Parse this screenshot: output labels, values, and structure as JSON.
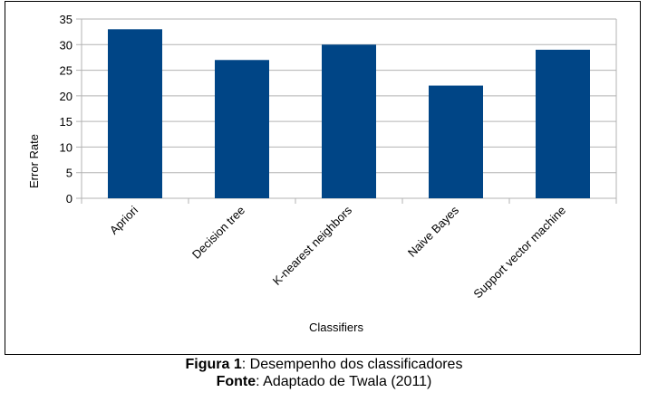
{
  "chart_data": {
    "type": "bar",
    "categories": [
      "Apriori",
      "Decision tree",
      "K-nearest neighbors",
      "Naive Bayes",
      "Support vector machine"
    ],
    "values": [
      33,
      27,
      30,
      22,
      29
    ],
    "xlabel": "Classifiers",
    "ylabel": "Error Rate",
    "ylim": [
      0,
      35
    ],
    "yticks": [
      0,
      5,
      10,
      15,
      20,
      25,
      30,
      35
    ],
    "grid": true,
    "legend": "none",
    "bar_color": "#004586",
    "grid_color": "#b3b3b3"
  },
  "caption": {
    "figure_label": "Figura 1",
    "figure_text": ": Desempenho dos classificadores",
    "source_label": "Fonte",
    "source_text": ": Adaptado de Twala (2011)"
  }
}
